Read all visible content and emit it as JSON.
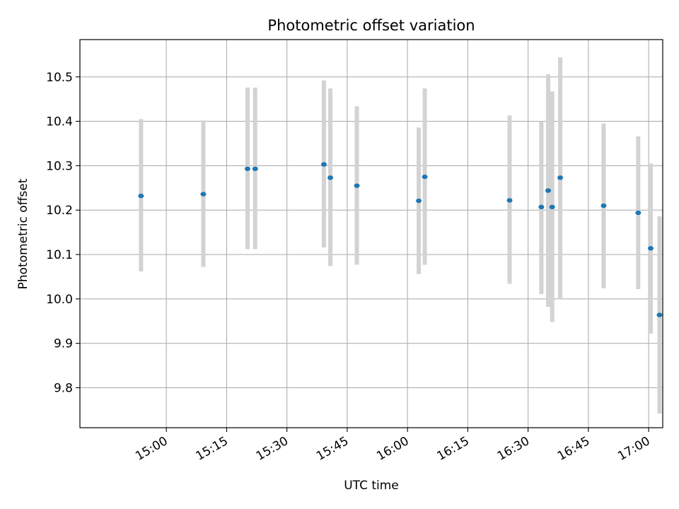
{
  "chart_data": {
    "type": "scatter",
    "title": "Photometric offset variation",
    "xlabel": "UTC time",
    "ylabel": "Photometric offset",
    "xlim_minutes": [
      878.5,
      1023.5
    ],
    "ylim": [
      9.71,
      10.584
    ],
    "grid": true,
    "x_ticks": [
      {
        "minutes": 900,
        "label": "15:00"
      },
      {
        "minutes": 915,
        "label": "15:15"
      },
      {
        "minutes": 930,
        "label": "15:30"
      },
      {
        "minutes": 945,
        "label": "15:45"
      },
      {
        "minutes": 960,
        "label": "16:00"
      },
      {
        "minutes": 975,
        "label": "16:15"
      },
      {
        "minutes": 990,
        "label": "16:30"
      },
      {
        "minutes": 1005,
        "label": "16:45"
      },
      {
        "minutes": 1020,
        "label": "17:00"
      }
    ],
    "y_ticks": [
      {
        "value": 9.8,
        "label": "9.8"
      },
      {
        "value": 9.9,
        "label": "9.9"
      },
      {
        "value": 10.0,
        "label": "10.0"
      },
      {
        "value": 10.1,
        "label": "10.1"
      },
      {
        "value": 10.2,
        "label": "10.2"
      },
      {
        "value": 10.3,
        "label": "10.3"
      },
      {
        "value": 10.4,
        "label": "10.4"
      },
      {
        "value": 10.5,
        "label": "10.5"
      }
    ],
    "points": [
      {
        "t": 893.7,
        "y": 10.232,
        "lo": 10.062,
        "hi": 10.405
      },
      {
        "t": 909.2,
        "y": 10.236,
        "lo": 10.072,
        "hi": 10.402
      },
      {
        "t": 920.2,
        "y": 10.293,
        "lo": 10.112,
        "hi": 10.476
      },
      {
        "t": 922.1,
        "y": 10.293,
        "lo": 10.112,
        "hi": 10.476
      },
      {
        "t": 939.2,
        "y": 10.303,
        "lo": 10.116,
        "hi": 10.492
      },
      {
        "t": 940.8,
        "y": 10.273,
        "lo": 10.074,
        "hi": 10.474
      },
      {
        "t": 947.4,
        "y": 10.255,
        "lo": 10.077,
        "hi": 10.434
      },
      {
        "t": 962.8,
        "y": 10.221,
        "lo": 10.056,
        "hi": 10.386
      },
      {
        "t": 964.3,
        "y": 10.275,
        "lo": 10.077,
        "hi": 10.474
      },
      {
        "t": 985.4,
        "y": 10.222,
        "lo": 10.034,
        "hi": 10.413
      },
      {
        "t": 993.3,
        "y": 10.207,
        "lo": 10.011,
        "hi": 10.4
      },
      {
        "t": 995.0,
        "y": 10.244,
        "lo": 9.982,
        "hi": 10.506
      },
      {
        "t": 996.0,
        "y": 10.207,
        "lo": 9.948,
        "hi": 10.467
      },
      {
        "t": 998.0,
        "y": 10.273,
        "lo": 10.0,
        "hi": 10.544
      },
      {
        "t": 1008.8,
        "y": 10.21,
        "lo": 10.024,
        "hi": 10.395
      },
      {
        "t": 1017.4,
        "y": 10.194,
        "lo": 10.022,
        "hi": 10.366
      },
      {
        "t": 1020.5,
        "y": 10.114,
        "lo": 9.922,
        "hi": 10.305
      },
      {
        "t": 1022.7,
        "y": 9.964,
        "lo": 9.742,
        "hi": 10.186
      }
    ],
    "colors": {
      "marker": "#1f77b4",
      "errorbar": "#d3d3d3",
      "grid": "#b0b0b0",
      "axes": "#000000"
    }
  }
}
